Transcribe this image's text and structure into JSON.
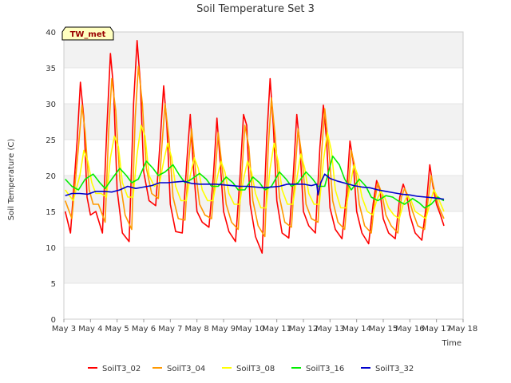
{
  "chart_data": {
    "type": "line",
    "title": "Soil Temperature Set 3",
    "xlabel": "Time",
    "ylabel": "Soil Temperature (C)",
    "ylim": [
      0,
      40
    ],
    "yticks": [
      0,
      5,
      10,
      15,
      20,
      25,
      30,
      35,
      40
    ],
    "xlim": [
      3,
      18
    ],
    "xticks": [
      3,
      4,
      5,
      6,
      7,
      8,
      9,
      10,
      11,
      12,
      13,
      14,
      15,
      16,
      17,
      18
    ],
    "xtick_labels": [
      "May 3",
      "May 4",
      "May 5",
      "May 6",
      "May 7",
      "May 8",
      "May 9",
      "May 10",
      "May 11",
      "May 12",
      "May 13",
      "May 14",
      "May 15",
      "May 16",
      "May 17",
      "May 18"
    ],
    "grid": "horizontal bands",
    "legend_position": "bottom",
    "tag": "TW_met",
    "series": [
      {
        "name": "SoilT3_02",
        "color": "#ff0000",
        "x": [
          3.05,
          3.25,
          3.5,
          3.62,
          3.75,
          3.87,
          4.0,
          4.2,
          4.45,
          4.62,
          4.75,
          4.87,
          5.0,
          5.2,
          5.45,
          5.62,
          5.75,
          5.87,
          6.0,
          6.2,
          6.45,
          6.62,
          6.75,
          6.87,
          7.0,
          7.2,
          7.45,
          7.62,
          7.75,
          7.87,
          8.0,
          8.2,
          8.45,
          8.62,
          8.75,
          8.87,
          9.0,
          9.2,
          9.45,
          9.62,
          9.75,
          9.87,
          10.0,
          10.2,
          10.45,
          10.62,
          10.75,
          10.87,
          11.0,
          11.2,
          11.45,
          11.62,
          11.75,
          11.87,
          12.0,
          12.2,
          12.45,
          12.62,
          12.75,
          12.87,
          13.0,
          13.2,
          13.45,
          13.62,
          13.75,
          13.87,
          14.0,
          14.2,
          14.45,
          14.62,
          14.75,
          14.87,
          15.0,
          15.2,
          15.45,
          15.62,
          15.75,
          15.87,
          16.0,
          16.2,
          16.45,
          16.62,
          16.75,
          16.87,
          17.0,
          17.15,
          17.28
        ],
        "values": [
          15.0,
          12.0,
          25.0,
          33.0,
          28.0,
          17.0,
          14.5,
          15.0,
          12.0,
          27.0,
          37.0,
          32.0,
          18.0,
          12.0,
          10.8,
          30.0,
          38.8,
          33.0,
          20.5,
          16.5,
          15.8,
          25.0,
          32.5,
          27.0,
          16.0,
          12.2,
          12.0,
          22.0,
          28.5,
          21.0,
          15.0,
          13.5,
          12.8,
          20.0,
          28.0,
          22.0,
          15.0,
          12.2,
          10.8,
          20.0,
          28.5,
          27.0,
          16.0,
          11.5,
          9.2,
          25.0,
          33.5,
          27.0,
          16.5,
          12.0,
          11.3,
          20.0,
          28.5,
          24.0,
          15.0,
          13.0,
          12.0,
          24.0,
          29.8,
          25.0,
          15.5,
          12.5,
          11.2,
          17.5,
          24.8,
          22.0,
          15.0,
          12.0,
          10.5,
          16.0,
          19.3,
          18.0,
          14.0,
          12.0,
          11.2,
          17.0,
          18.8,
          17.5,
          14.5,
          12.0,
          11.0,
          16.0,
          21.5,
          18.5,
          16.0,
          14.5,
          13.0
        ]
      },
      {
        "name": "SoilT3_04",
        "color": "#ff9900",
        "x": [
          3.05,
          3.3,
          3.55,
          3.68,
          3.8,
          3.95,
          4.1,
          4.3,
          4.55,
          4.68,
          4.8,
          4.95,
          5.1,
          5.3,
          5.55,
          5.68,
          5.8,
          5.95,
          6.1,
          6.3,
          6.55,
          6.68,
          6.8,
          6.95,
          7.1,
          7.3,
          7.55,
          7.68,
          7.8,
          7.95,
          8.1,
          8.3,
          8.55,
          8.68,
          8.8,
          8.95,
          9.1,
          9.3,
          9.55,
          9.68,
          9.8,
          9.95,
          10.1,
          10.3,
          10.55,
          10.68,
          10.8,
          10.95,
          11.1,
          11.3,
          11.55,
          11.68,
          11.8,
          11.95,
          12.1,
          12.3,
          12.55,
          12.68,
          12.8,
          12.95,
          13.1,
          13.3,
          13.55,
          13.68,
          13.8,
          13.95,
          14.1,
          14.3,
          14.55,
          14.68,
          14.8,
          14.95,
          15.1,
          15.3,
          15.55,
          15.68,
          15.8,
          15.95,
          16.1,
          16.3,
          16.55,
          16.68,
          16.8,
          16.95,
          17.1,
          17.28
        ],
        "values": [
          16.5,
          14.0,
          24.0,
          29.8,
          26.0,
          18.0,
          16.0,
          16.0,
          13.5,
          26.0,
          33.5,
          29.0,
          19.5,
          14.5,
          12.5,
          28.0,
          35.2,
          30.0,
          21.0,
          17.5,
          16.8,
          24.0,
          30.0,
          25.0,
          17.0,
          14.0,
          13.8,
          21.5,
          26.5,
          20.5,
          16.0,
          14.5,
          14.0,
          20.0,
          26.0,
          21.0,
          16.0,
          13.5,
          12.5,
          20.0,
          27.0,
          24.0,
          16.5,
          13.0,
          11.5,
          24.0,
          30.8,
          25.0,
          17.0,
          13.5,
          12.8,
          20.0,
          26.5,
          22.5,
          16.0,
          14.0,
          13.5,
          23.0,
          29.3,
          24.0,
          16.5,
          13.5,
          12.5,
          18.0,
          23.5,
          21.0,
          16.0,
          13.0,
          12.0,
          16.5,
          19.0,
          17.5,
          14.5,
          13.0,
          12.0,
          17.0,
          18.2,
          17.0,
          15.0,
          13.0,
          12.5,
          16.5,
          20.0,
          17.5,
          15.5,
          14.0
        ]
      },
      {
        "name": "SoilT3_08",
        "color": "#ffff00",
        "x": [
          3.05,
          3.35,
          3.6,
          3.75,
          3.9,
          4.05,
          4.2,
          4.4,
          4.6,
          4.75,
          4.9,
          5.05,
          5.2,
          5.4,
          5.6,
          5.75,
          5.9,
          6.05,
          6.2,
          6.4,
          6.6,
          6.75,
          6.9,
          7.05,
          7.2,
          7.4,
          7.6,
          7.75,
          7.9,
          8.05,
          8.2,
          8.4,
          8.6,
          8.75,
          8.9,
          9.05,
          9.2,
          9.4,
          9.6,
          9.75,
          9.9,
          10.05,
          10.2,
          10.4,
          10.6,
          10.75,
          10.9,
          11.05,
          11.2,
          11.4,
          11.6,
          11.75,
          11.9,
          12.05,
          12.2,
          12.4,
          12.6,
          12.75,
          12.9,
          13.05,
          13.2,
          13.4,
          13.6,
          13.75,
          13.9,
          14.05,
          14.2,
          14.4,
          14.6,
          14.75,
          14.9,
          15.05,
          15.2,
          15.4,
          15.6,
          15.75,
          15.9,
          16.05,
          16.2,
          16.4,
          16.6,
          16.75,
          16.9,
          17.05,
          17.28
        ],
        "values": [
          18.0,
          16.5,
          20.0,
          23.5,
          22.0,
          19.0,
          17.5,
          17.5,
          17.0,
          22.5,
          25.5,
          24.0,
          19.0,
          17.0,
          17.0,
          23.0,
          27.0,
          25.5,
          20.0,
          18.5,
          19.0,
          22.0,
          24.5,
          22.5,
          18.5,
          16.5,
          16.5,
          20.0,
          22.5,
          21.0,
          18.0,
          16.5,
          16.5,
          19.5,
          22.0,
          20.5,
          17.5,
          16.0,
          16.0,
          19.5,
          22.0,
          20.5,
          17.5,
          15.5,
          15.5,
          21.0,
          24.5,
          22.0,
          18.0,
          16.0,
          16.0,
          19.5,
          23.0,
          21.0,
          17.5,
          16.0,
          16.0,
          22.0,
          26.0,
          23.5,
          18.0,
          15.5,
          15.5,
          18.5,
          21.5,
          20.0,
          17.0,
          15.0,
          14.5,
          16.5,
          17.8,
          17.0,
          15.5,
          14.5,
          14.0,
          16.0,
          17.2,
          16.5,
          15.0,
          14.5,
          14.0,
          16.0,
          18.0,
          17.0,
          15.0
        ]
      },
      {
        "name": "SoilT3_16",
        "color": "#00ee00",
        "x": [
          3.05,
          3.3,
          3.55,
          3.8,
          4.1,
          4.35,
          4.55,
          4.8,
          5.1,
          5.35,
          5.55,
          5.8,
          6.1,
          6.35,
          6.55,
          6.8,
          7.1,
          7.35,
          7.55,
          7.8,
          8.1,
          8.35,
          8.55,
          8.8,
          9.1,
          9.35,
          9.55,
          9.8,
          10.1,
          10.35,
          10.55,
          10.8,
          11.1,
          11.35,
          11.55,
          11.8,
          12.1,
          12.35,
          12.55,
          12.8,
          13.1,
          13.35,
          13.55,
          13.8,
          14.1,
          14.35,
          14.55,
          14.8,
          15.1,
          15.35,
          15.55,
          15.8,
          16.1,
          16.35,
          16.55,
          16.8,
          17.05,
          17.28
        ],
        "values": [
          19.5,
          18.5,
          18.0,
          19.5,
          20.2,
          19.0,
          18.2,
          19.5,
          21.0,
          20.0,
          19.0,
          19.5,
          22.0,
          21.0,
          20.0,
          20.5,
          21.5,
          20.0,
          19.0,
          19.5,
          20.3,
          19.5,
          18.5,
          18.5,
          19.8,
          19.0,
          18.0,
          18.0,
          19.8,
          19.0,
          18.0,
          18.5,
          20.5,
          19.5,
          18.5,
          19.0,
          20.5,
          19.5,
          18.5,
          18.5,
          22.7,
          21.5,
          19.5,
          18.0,
          19.5,
          18.5,
          17.0,
          16.5,
          17.2,
          17.0,
          16.5,
          16.0,
          16.8,
          16.2,
          15.5,
          16.0,
          17.0,
          16.5
        ]
      },
      {
        "name": "SoilT3_32",
        "color": "#0000cc",
        "x": [
          3.05,
          3.3,
          3.6,
          3.9,
          4.2,
          4.5,
          4.8,
          5.1,
          5.4,
          5.7,
          6.0,
          6.3,
          6.6,
          6.9,
          7.2,
          7.5,
          7.8,
          8.1,
          8.4,
          8.7,
          9.0,
          9.3,
          9.6,
          9.9,
          10.2,
          10.5,
          10.8,
          11.1,
          11.4,
          11.7,
          12.0,
          12.3,
          12.5,
          12.55,
          12.65,
          12.8,
          13.0,
          13.3,
          13.6,
          13.9,
          14.2,
          14.5,
          14.8,
          15.1,
          15.4,
          15.7,
          16.0,
          16.3,
          16.6,
          16.9,
          17.28
        ],
        "values": [
          17.2,
          17.5,
          17.5,
          17.4,
          17.8,
          17.8,
          17.7,
          18.0,
          18.5,
          18.2,
          18.4,
          18.6,
          19.0,
          19.0,
          19.1,
          19.2,
          18.9,
          18.8,
          18.8,
          18.8,
          18.7,
          18.6,
          18.5,
          18.5,
          18.4,
          18.3,
          18.4,
          18.5,
          18.8,
          18.8,
          18.8,
          18.6,
          18.8,
          17.3,
          19.0,
          20.2,
          19.6,
          19.2,
          18.9,
          18.6,
          18.4,
          18.3,
          18.0,
          17.8,
          17.6,
          17.4,
          17.3,
          17.1,
          17.0,
          16.9,
          16.7
        ]
      }
    ]
  }
}
